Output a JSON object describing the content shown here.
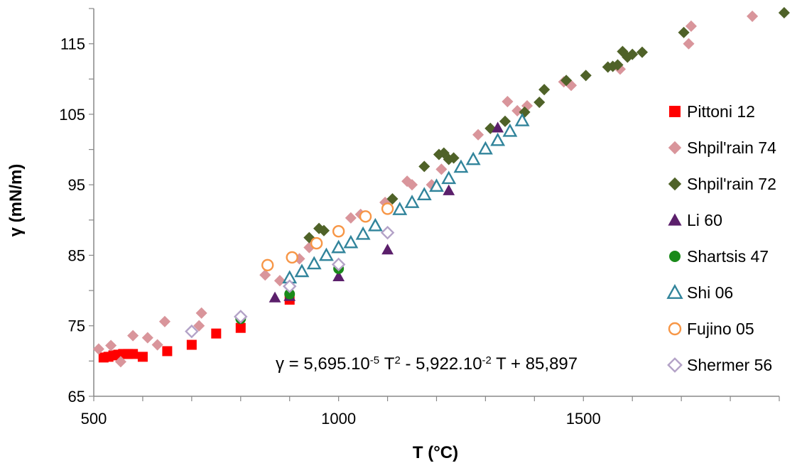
{
  "chart_data": {
    "type": "scatter",
    "xlabel": "T (°C)",
    "ylabel": "γ (mN/m)",
    "xlim": [
      500,
      1900
    ],
    "ylim": [
      65,
      120
    ],
    "x_ticks": [
      500,
      1000,
      1500
    ],
    "y_ticks": [
      65,
      75,
      85,
      95,
      105,
      115
    ],
    "grid": false,
    "legend_position": "right",
    "equation": {
      "prefix": "γ = 5,695.10",
      "sup1": "-5",
      "mid": " T",
      "sup2": "2",
      "suffix": " - 5,922.10",
      "sup3": "-2",
      "tail": " T + 85,897"
    },
    "series": [
      {
        "name": "Pittoni 12",
        "marker": "square",
        "filled": true,
        "color": "#ff0000",
        "points": [
          [
            520,
            70.5
          ],
          [
            530,
            70.6
          ],
          [
            540,
            70.8
          ],
          [
            550,
            70.9
          ],
          [
            560,
            71.0
          ],
          [
            570,
            71.0
          ],
          [
            580,
            71.0
          ],
          [
            600,
            70.6
          ],
          [
            650,
            71.4
          ],
          [
            700,
            72.3
          ],
          [
            750,
            73.9
          ],
          [
            800,
            74.7
          ],
          [
            900,
            78.7
          ]
        ]
      },
      {
        "name": "Shpil'rain 74",
        "marker": "diamond",
        "filled": true,
        "color": "#d9959b",
        "points": [
          [
            510,
            71.7
          ],
          [
            535,
            72.2
          ],
          [
            555,
            69.9
          ],
          [
            580,
            73.6
          ],
          [
            610,
            73.3
          ],
          [
            630,
            72.3
          ],
          [
            645,
            75.6
          ],
          [
            715,
            75.0
          ],
          [
            720,
            76.8
          ],
          [
            850,
            82.2
          ],
          [
            880,
            81.4
          ],
          [
            920,
            84.5
          ],
          [
            940,
            86.1
          ],
          [
            1025,
            90.3
          ],
          [
            1045,
            90.8
          ],
          [
            1095,
            92.5
          ],
          [
            1140,
            95.5
          ],
          [
            1150,
            95.0
          ],
          [
            1190,
            95.0
          ],
          [
            1210,
            97.2
          ],
          [
            1285,
            102.1
          ],
          [
            1345,
            106.8
          ],
          [
            1365,
            105.5
          ],
          [
            1385,
            106.2
          ],
          [
            1460,
            109.6
          ],
          [
            1475,
            109.1
          ],
          [
            1575,
            111.4
          ],
          [
            1715,
            115.0
          ],
          [
            1720,
            117.5
          ],
          [
            1845,
            118.9
          ]
        ]
      },
      {
        "name": "Shpil'rain 72",
        "marker": "diamond",
        "filled": true,
        "color": "#4f6228",
        "points": [
          [
            940,
            87.5
          ],
          [
            960,
            88.8
          ],
          [
            970,
            88.5
          ],
          [
            1110,
            93.0
          ],
          [
            1175,
            97.6
          ],
          [
            1205,
            99.3
          ],
          [
            1215,
            99.5
          ],
          [
            1225,
            98.6
          ],
          [
            1235,
            98.8
          ],
          [
            1310,
            103.0
          ],
          [
            1340,
            104.0
          ],
          [
            1380,
            105.3
          ],
          [
            1410,
            106.7
          ],
          [
            1420,
            108.5
          ],
          [
            1465,
            109.8
          ],
          [
            1505,
            110.5
          ],
          [
            1550,
            111.7
          ],
          [
            1560,
            111.8
          ],
          [
            1570,
            112.0
          ],
          [
            1580,
            113.9
          ],
          [
            1590,
            113.1
          ],
          [
            1600,
            113.5
          ],
          [
            1620,
            113.8
          ],
          [
            1705,
            116.6
          ],
          [
            1910,
            119.4
          ]
        ]
      },
      {
        "name": "Li 60",
        "marker": "triangle",
        "filled": true,
        "color": "#5b1f6b",
        "points": [
          [
            870,
            79.0
          ],
          [
            900,
            79.2
          ],
          [
            1000,
            82.0
          ],
          [
            1100,
            85.8
          ],
          [
            1225,
            94.2
          ],
          [
            1325,
            103.1
          ]
        ]
      },
      {
        "name": "Shartsis 47",
        "marker": "circle",
        "filled": true,
        "color": "#1a8a1a",
        "points": [
          [
            800,
            76.0
          ],
          [
            900,
            79.5
          ],
          [
            1000,
            83.1
          ]
        ]
      },
      {
        "name": "Shi 06",
        "marker": "triangle",
        "filled": false,
        "color": "#31849b",
        "points": [
          [
            900,
            81.8
          ],
          [
            925,
            82.7
          ],
          [
            950,
            83.8
          ],
          [
            975,
            85.0
          ],
          [
            1000,
            86.1
          ],
          [
            1025,
            86.8
          ],
          [
            1050,
            88.0
          ],
          [
            1075,
            89.2
          ],
          [
            1125,
            91.5
          ],
          [
            1150,
            92.5
          ],
          [
            1175,
            93.6
          ],
          [
            1200,
            94.8
          ],
          [
            1225,
            95.9
          ],
          [
            1250,
            97.5
          ],
          [
            1275,
            98.6
          ],
          [
            1300,
            100.1
          ],
          [
            1325,
            101.3
          ],
          [
            1350,
            102.6
          ],
          [
            1375,
            104.1
          ]
        ]
      },
      {
        "name": "Fujino 05",
        "marker": "circle",
        "filled": false,
        "color": "#f79646",
        "points": [
          [
            855,
            83.6
          ],
          [
            905,
            84.7
          ],
          [
            955,
            86.7
          ],
          [
            1000,
            88.4
          ],
          [
            1055,
            90.5
          ],
          [
            1100,
            91.6
          ]
        ]
      },
      {
        "name": "Shermer 56",
        "marker": "diamond",
        "filled": false,
        "color": "#b3a2c7",
        "points": [
          [
            700,
            74.2
          ],
          [
            800,
            76.3
          ],
          [
            900,
            80.6
          ],
          [
            1000,
            83.7
          ],
          [
            1100,
            88.2
          ]
        ]
      }
    ]
  }
}
